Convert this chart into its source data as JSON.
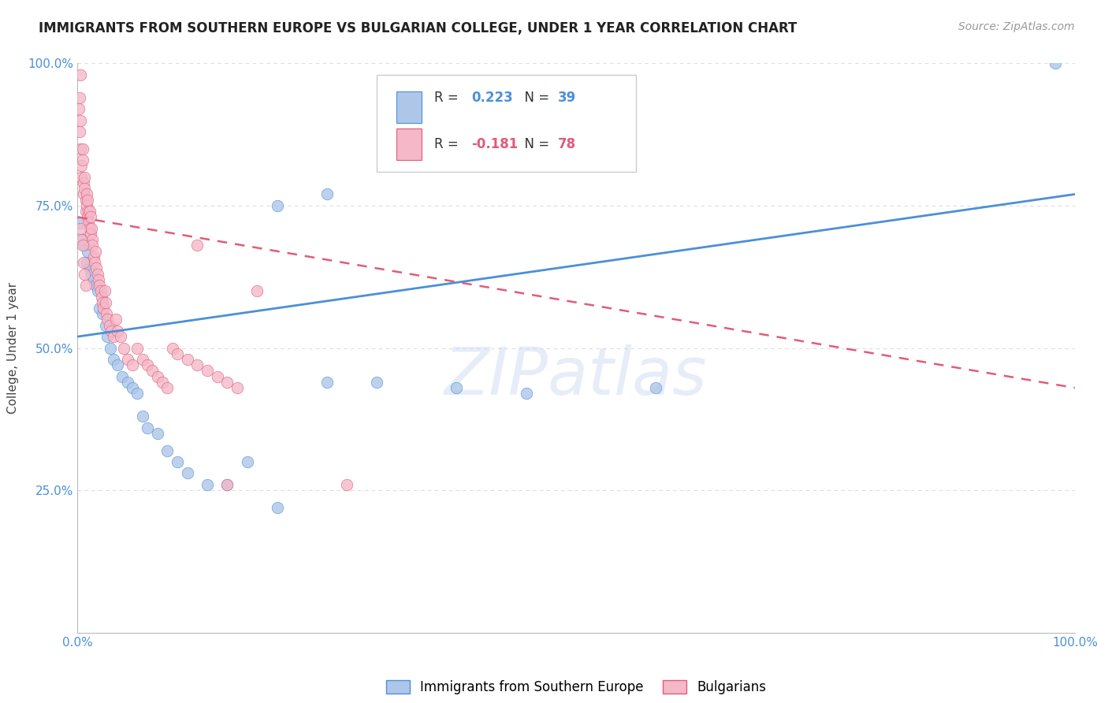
{
  "title": "IMMIGRANTS FROM SOUTHERN EUROPE VS BULGARIAN COLLEGE, UNDER 1 YEAR CORRELATION CHART",
  "source": "Source: ZipAtlas.com",
  "ylabel": "College, Under 1 year",
  "xlim": [
    0.0,
    1.0
  ],
  "ylim": [
    0.0,
    1.0
  ],
  "grid_color": "#dddddd",
  "bg_color": "#ffffff",
  "blue_color": "#aec6e8",
  "blue_line_color": "#4a90d9",
  "pink_color": "#f4b8c8",
  "pink_line_color": "#e05c7a",
  "watermark": "ZIPatlas",
  "legend_label1": "Immigrants from Southern Europe",
  "legend_label2": "Bulgarians",
  "blue_R": 0.223,
  "pink_R": -0.181,
  "blue_N": 39,
  "pink_N": 78,
  "blue_line_x0": 0.0,
  "blue_line_y0": 0.52,
  "blue_line_x1": 1.0,
  "blue_line_y1": 0.77,
  "pink_line_x0": 0.0,
  "pink_line_y0": 0.73,
  "pink_line_x1": 1.0,
  "pink_line_y1": 0.43,
  "blue_scatter_x": [
    0.003,
    0.005,
    0.007,
    0.009,
    0.01,
    0.012,
    0.014,
    0.016,
    0.018,
    0.02,
    0.022,
    0.025,
    0.028,
    0.03,
    0.033,
    0.036,
    0.04,
    0.045,
    0.05,
    0.055,
    0.06,
    0.065,
    0.07,
    0.08,
    0.09,
    0.1,
    0.11,
    0.13,
    0.15,
    0.17,
    0.2,
    0.25,
    0.3,
    0.38,
    0.45,
    0.58,
    0.2,
    0.25,
    0.98
  ],
  "blue_scatter_y": [
    0.72,
    0.69,
    0.68,
    0.65,
    0.67,
    0.64,
    0.63,
    0.62,
    0.61,
    0.6,
    0.57,
    0.56,
    0.54,
    0.52,
    0.5,
    0.48,
    0.47,
    0.45,
    0.44,
    0.43,
    0.42,
    0.38,
    0.36,
    0.35,
    0.32,
    0.3,
    0.28,
    0.26,
    0.26,
    0.3,
    0.22,
    0.44,
    0.44,
    0.43,
    0.42,
    0.43,
    0.75,
    0.77,
    1.0
  ],
  "pink_scatter_x": [
    0.001,
    0.002,
    0.002,
    0.003,
    0.003,
    0.004,
    0.004,
    0.005,
    0.005,
    0.006,
    0.006,
    0.007,
    0.007,
    0.008,
    0.008,
    0.009,
    0.009,
    0.01,
    0.01,
    0.011,
    0.011,
    0.012,
    0.012,
    0.013,
    0.013,
    0.014,
    0.015,
    0.015,
    0.016,
    0.017,
    0.018,
    0.019,
    0.02,
    0.021,
    0.022,
    0.023,
    0.024,
    0.025,
    0.026,
    0.027,
    0.028,
    0.029,
    0.03,
    0.032,
    0.034,
    0.036,
    0.038,
    0.04,
    0.043,
    0.046,
    0.05,
    0.055,
    0.06,
    0.065,
    0.07,
    0.075,
    0.08,
    0.085,
    0.09,
    0.095,
    0.1,
    0.11,
    0.12,
    0.13,
    0.14,
    0.15,
    0.16,
    0.18,
    0.003,
    0.004,
    0.005,
    0.006,
    0.007,
    0.008,
    0.12,
    0.15,
    0.27,
    0.003
  ],
  "pink_scatter_y": [
    0.92,
    0.88,
    0.94,
    0.85,
    0.9,
    0.82,
    0.8,
    0.83,
    0.85,
    0.79,
    0.77,
    0.78,
    0.8,
    0.76,
    0.74,
    0.77,
    0.75,
    0.73,
    0.76,
    0.74,
    0.72,
    0.74,
    0.71,
    0.7,
    0.73,
    0.71,
    0.69,
    0.68,
    0.66,
    0.65,
    0.67,
    0.64,
    0.63,
    0.62,
    0.61,
    0.6,
    0.59,
    0.58,
    0.57,
    0.6,
    0.58,
    0.56,
    0.55,
    0.54,
    0.53,
    0.52,
    0.55,
    0.53,
    0.52,
    0.5,
    0.48,
    0.47,
    0.5,
    0.48,
    0.47,
    0.46,
    0.45,
    0.44,
    0.43,
    0.5,
    0.49,
    0.48,
    0.47,
    0.46,
    0.45,
    0.44,
    0.43,
    0.6,
    0.71,
    0.69,
    0.68,
    0.65,
    0.63,
    0.61,
    0.68,
    0.26,
    0.26,
    0.98
  ]
}
